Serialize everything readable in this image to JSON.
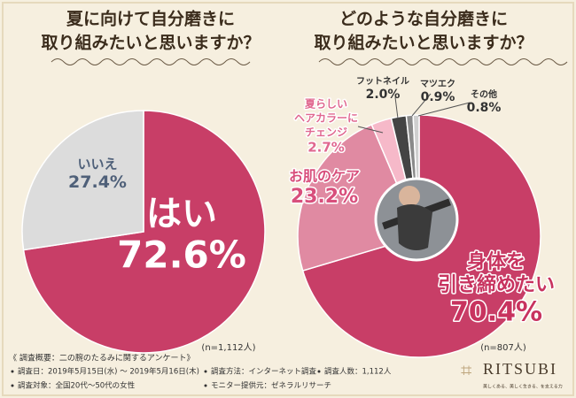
{
  "chart_data": [
    {
      "type": "pie",
      "title": [
        "夏に向けて自分磨きに",
        "取り組みたいと思いますか？"
      ],
      "categories": [
        "はい",
        "いいえ"
      ],
      "values": [
        72.6,
        27.4
      ],
      "value_labels": [
        "72.6%",
        "27.4%"
      ],
      "colors": [
        "#c83e67",
        "#dcdcdc"
      ],
      "note": "(n=1,112人)"
    },
    {
      "type": "pie",
      "title": [
        "どのような自分磨きに",
        "取り組みたいと思いますか？"
      ],
      "categories": [
        [
          "身体を",
          "引き締めたい"
        ],
        "お肌のケア",
        [
          "夏らしい",
          "ヘアカラーに",
          "チェンジ"
        ],
        "フットネイル",
        "マツエク",
        "その他"
      ],
      "values": [
        70.4,
        23.2,
        2.7,
        2.0,
        0.9,
        0.8
      ],
      "value_labels": [
        "70.4%",
        "23.2%",
        "2.7%",
        "2.0%",
        "0.9%",
        "0.8%"
      ],
      "colors": [
        "#c83e67",
        "#e08aa2",
        "#f6b9c9",
        "#444444",
        "#8a8a8a",
        "#cfcfcf"
      ],
      "note": "(n=807人)"
    }
  ],
  "footer": {
    "heading": "《 調査概要：二の腕のたるみに関するアンケート》",
    "items": [
      "調査日：2019年5月15日(水) ～ 2019年5月16日(木)",
      "調査方法：インターネット調査",
      "調査人数：1,112人",
      "調査対象：全国20代～50代の女性",
      "モニター提供元：ゼネラルリサーチ"
    ]
  },
  "logo": {
    "name": "RITSUBI",
    "tagline": "美しくある、美しく生きる、を支える力"
  }
}
